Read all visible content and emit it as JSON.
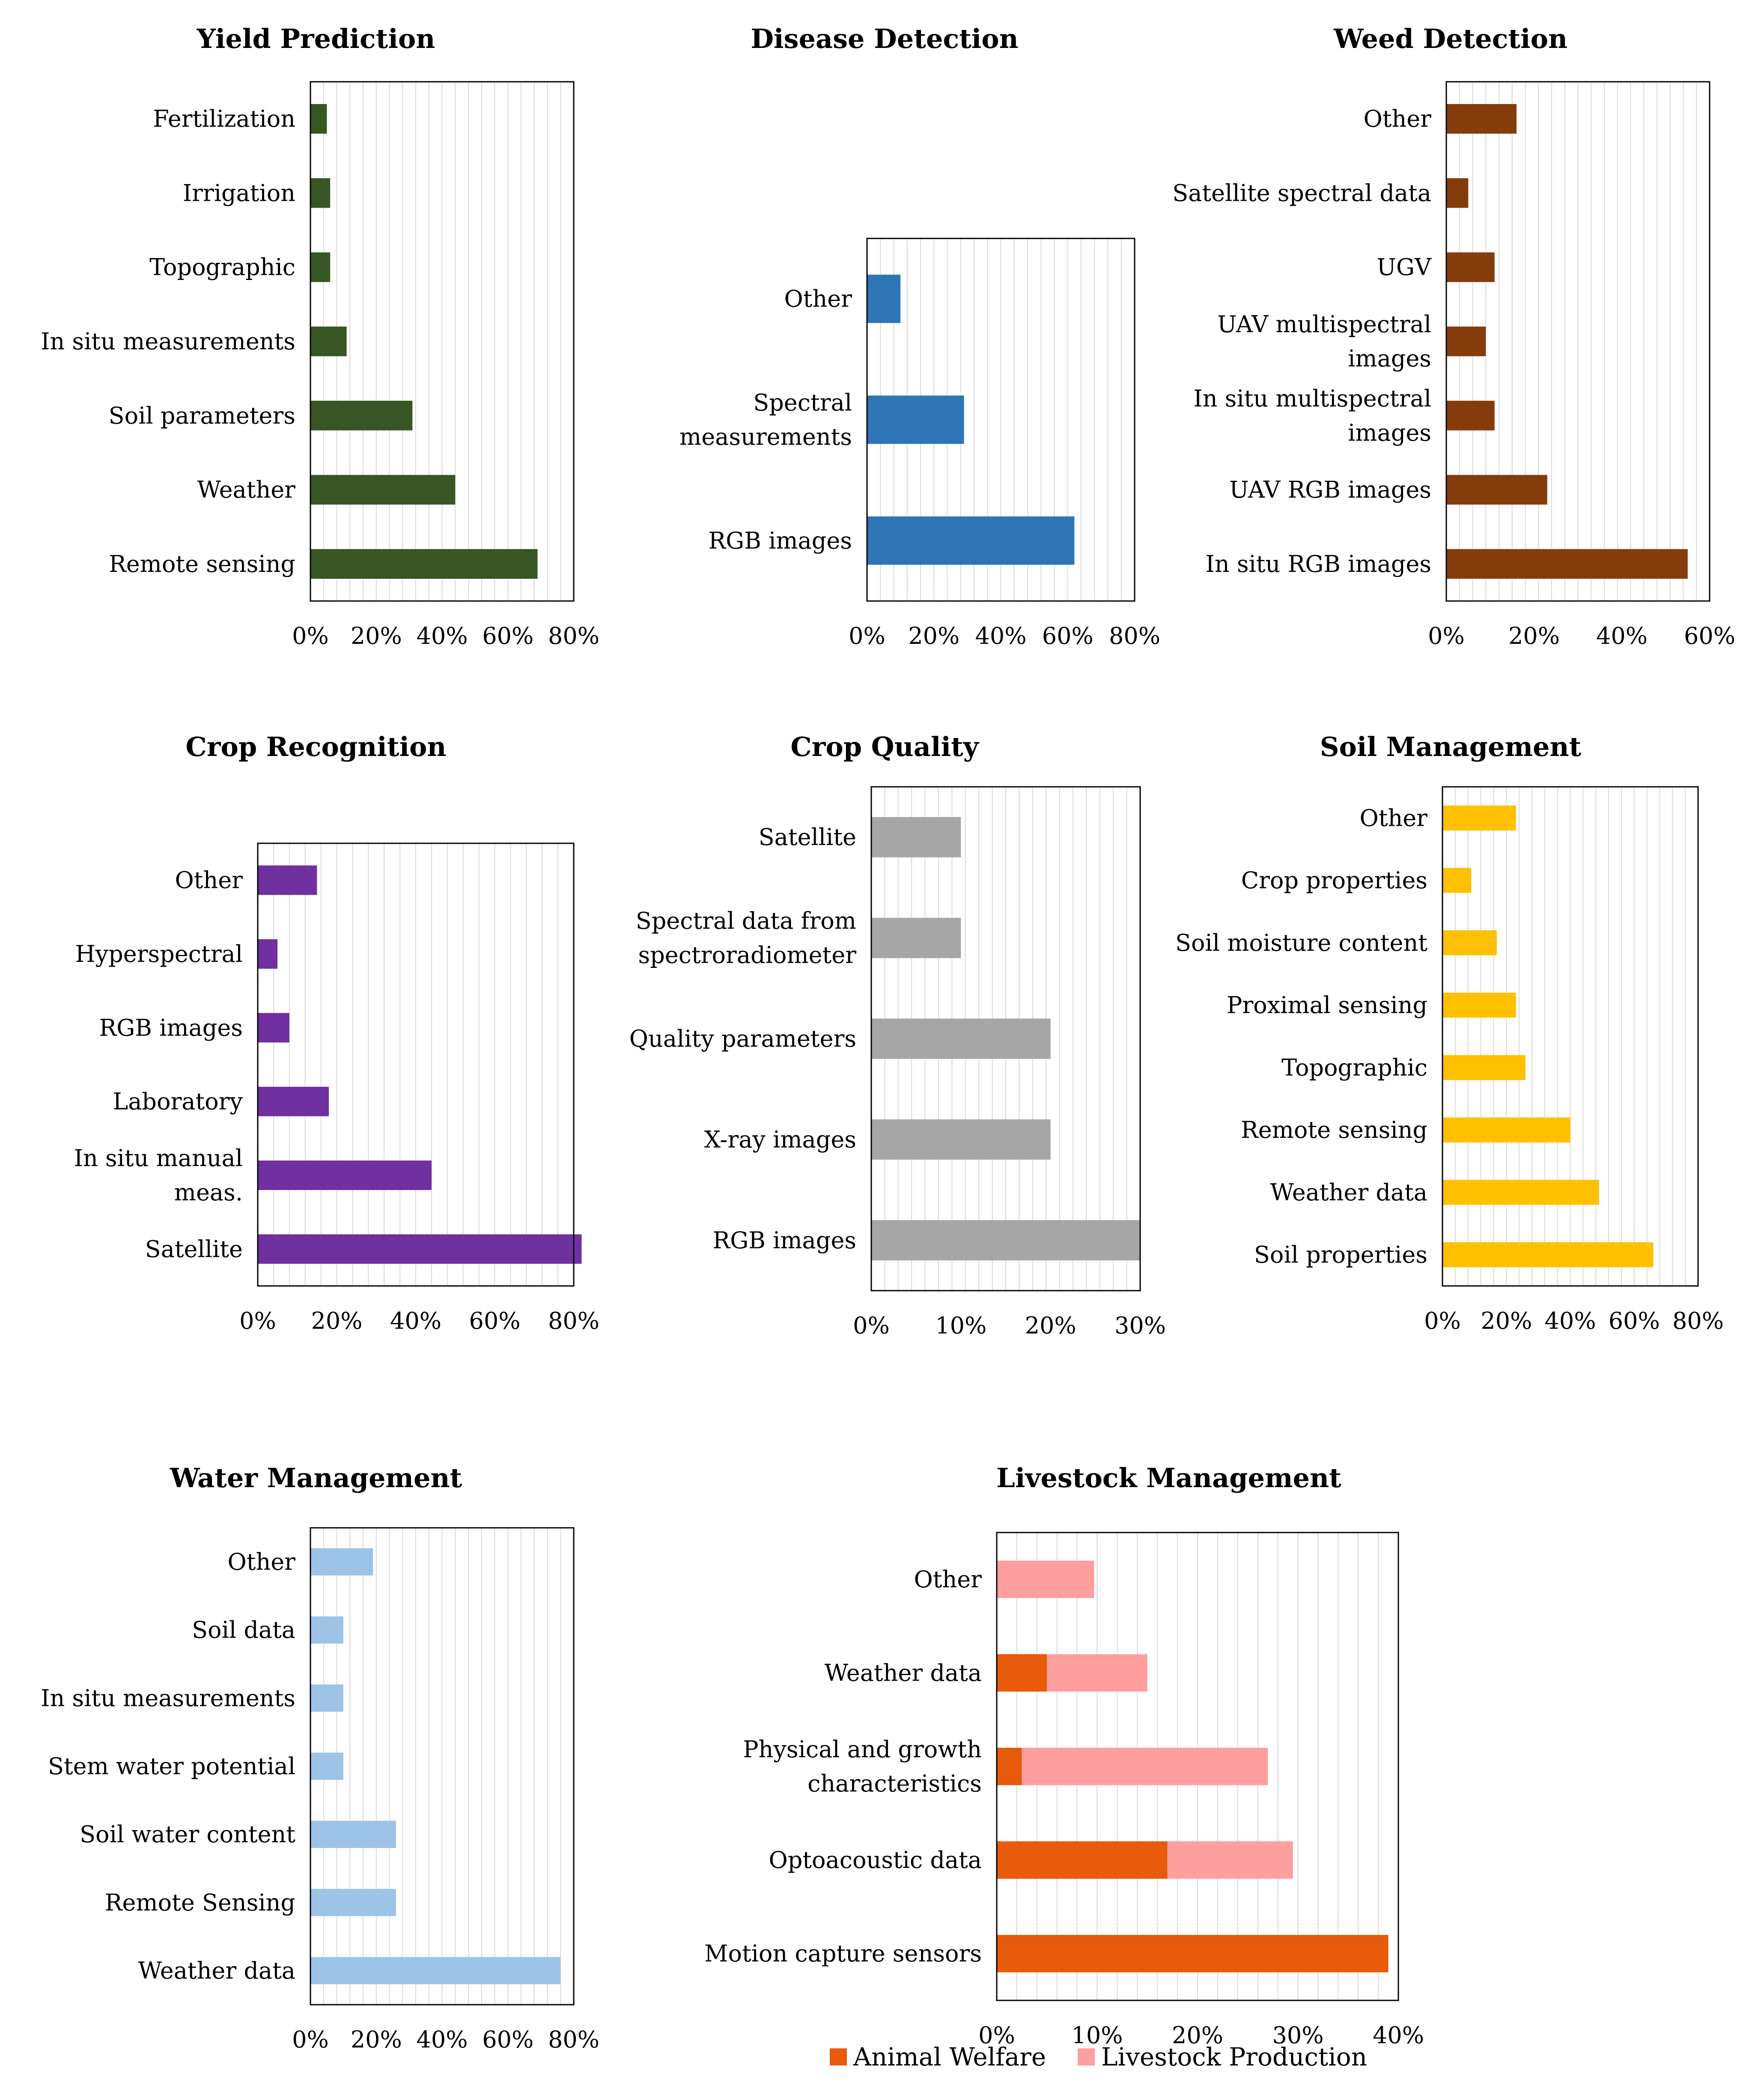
{
  "charts": [
    {
      "id": "yield",
      "type": "bar",
      "title": "Yield Prediction",
      "color": "#375623",
      "xmax": 80,
      "xticks": [
        0,
        20,
        40,
        60,
        80
      ],
      "categories": [
        [
          "Fertilization"
        ],
        [
          "Irrigation"
        ],
        [
          "Topographic"
        ],
        [
          "In situ measurements"
        ],
        [
          "Soil parameters"
        ],
        [
          "Weather"
        ],
        [
          "Remote sensing"
        ]
      ],
      "values": [
        5,
        6,
        6,
        11,
        31,
        44,
        69
      ]
    },
    {
      "id": "disease",
      "type": "bar",
      "title": "Disease Detection",
      "color": "#2E75B6",
      "xmax": 80,
      "xticks": [
        0,
        20,
        40,
        60,
        80
      ],
      "categories": [
        [
          "Other"
        ],
        [
          "Spectral",
          "measurements"
        ],
        [
          "RGB images"
        ]
      ],
      "values": [
        10,
        29,
        62
      ]
    },
    {
      "id": "weed",
      "type": "bar",
      "title": "Weed Detection",
      "color": "#843C0C",
      "xmax": 60,
      "xticks": [
        0,
        20,
        40,
        60
      ],
      "categories": [
        [
          "Other"
        ],
        [
          "Satellite spectral data"
        ],
        [
          "UGV"
        ],
        [
          "UAV multispectral",
          "images"
        ],
        [
          "In situ  multispectral",
          "images"
        ],
        [
          "UAV RGB images"
        ],
        [
          "In situ RGB images"
        ]
      ],
      "values": [
        16,
        5,
        11,
        9,
        11,
        23,
        55
      ]
    },
    {
      "id": "croprec",
      "type": "bar",
      "title": "Crop Recognition",
      "color": "#7030A0",
      "xmax": 80,
      "xticks": [
        0,
        20,
        40,
        60,
        80
      ],
      "categories": [
        [
          "Other"
        ],
        [
          "Hyperspectral"
        ],
        [
          "RGB images"
        ],
        [
          "Laboratory"
        ],
        [
          "In situ manual",
          "meas."
        ],
        [
          "Satellite"
        ]
      ],
      "values": [
        15,
        5,
        8,
        18,
        44,
        82
      ]
    },
    {
      "id": "cropqual",
      "type": "bar",
      "title": "Crop Quality",
      "color": "#A6A6A6",
      "xmax": 30,
      "xticks": [
        0,
        10,
        20,
        30
      ],
      "categories": [
        [
          "Satellite"
        ],
        [
          "Spectral data from",
          "spectroradiometer"
        ],
        [
          "Quality parameters"
        ],
        [
          "X-ray images"
        ],
        [
          "RGB images"
        ]
      ],
      "values": [
        10,
        10,
        20,
        20,
        30
      ]
    },
    {
      "id": "soil",
      "type": "bar",
      "title": "Soil Management",
      "color": "#FFC000",
      "xmax": 80,
      "xticks": [
        0,
        20,
        40,
        60,
        80
      ],
      "categories": [
        [
          "Other"
        ],
        [
          "Crop properties"
        ],
        [
          "Soil moisture content"
        ],
        [
          "Proximal sensing"
        ],
        [
          "Topographic"
        ],
        [
          "Remote sensing"
        ],
        [
          "Weather data"
        ],
        [
          "Soil properties"
        ]
      ],
      "values": [
        23,
        9,
        17,
        23,
        26,
        40,
        49,
        66
      ]
    },
    {
      "id": "water",
      "type": "bar",
      "title": "Water Management",
      "color": "#9DC3E6",
      "xmax": 80,
      "xticks": [
        0,
        20,
        40,
        60,
        80
      ],
      "categories": [
        [
          "Other"
        ],
        [
          "Soil data"
        ],
        [
          "In situ measurements"
        ],
        [
          "Stem water potential"
        ],
        [
          "Soil water content"
        ],
        [
          "Remote Sensing"
        ],
        [
          "Weather data"
        ]
      ],
      "values": [
        19,
        10,
        10,
        10,
        26,
        26,
        76
      ]
    },
    {
      "id": "livestock",
      "type": "stacked-bar",
      "title": "Livestock Management",
      "xmax": 40,
      "xticks": [
        0,
        10,
        20,
        30,
        40
      ],
      "categories": [
        [
          "Other"
        ],
        [
          "Weather data"
        ],
        [
          "Physical and growth",
          "characteristics"
        ],
        [
          "Optoacoustic data"
        ],
        [
          "Motion capture sensors"
        ]
      ],
      "series": [
        {
          "name": "Animal Welfare",
          "color": "#E85A0C",
          "values": [
            0,
            5,
            2.5,
            17,
            39
          ]
        },
        {
          "name": "Livestock Production",
          "color": "#FF9E9E",
          "values": [
            9.7,
            10,
            24.5,
            12.5,
            0
          ]
        }
      ]
    }
  ],
  "legend": [
    {
      "name": "Animal Welfare",
      "color": "#E85A0C"
    },
    {
      "name": "Livestock Production",
      "color": "#FF9E9E"
    }
  ]
}
